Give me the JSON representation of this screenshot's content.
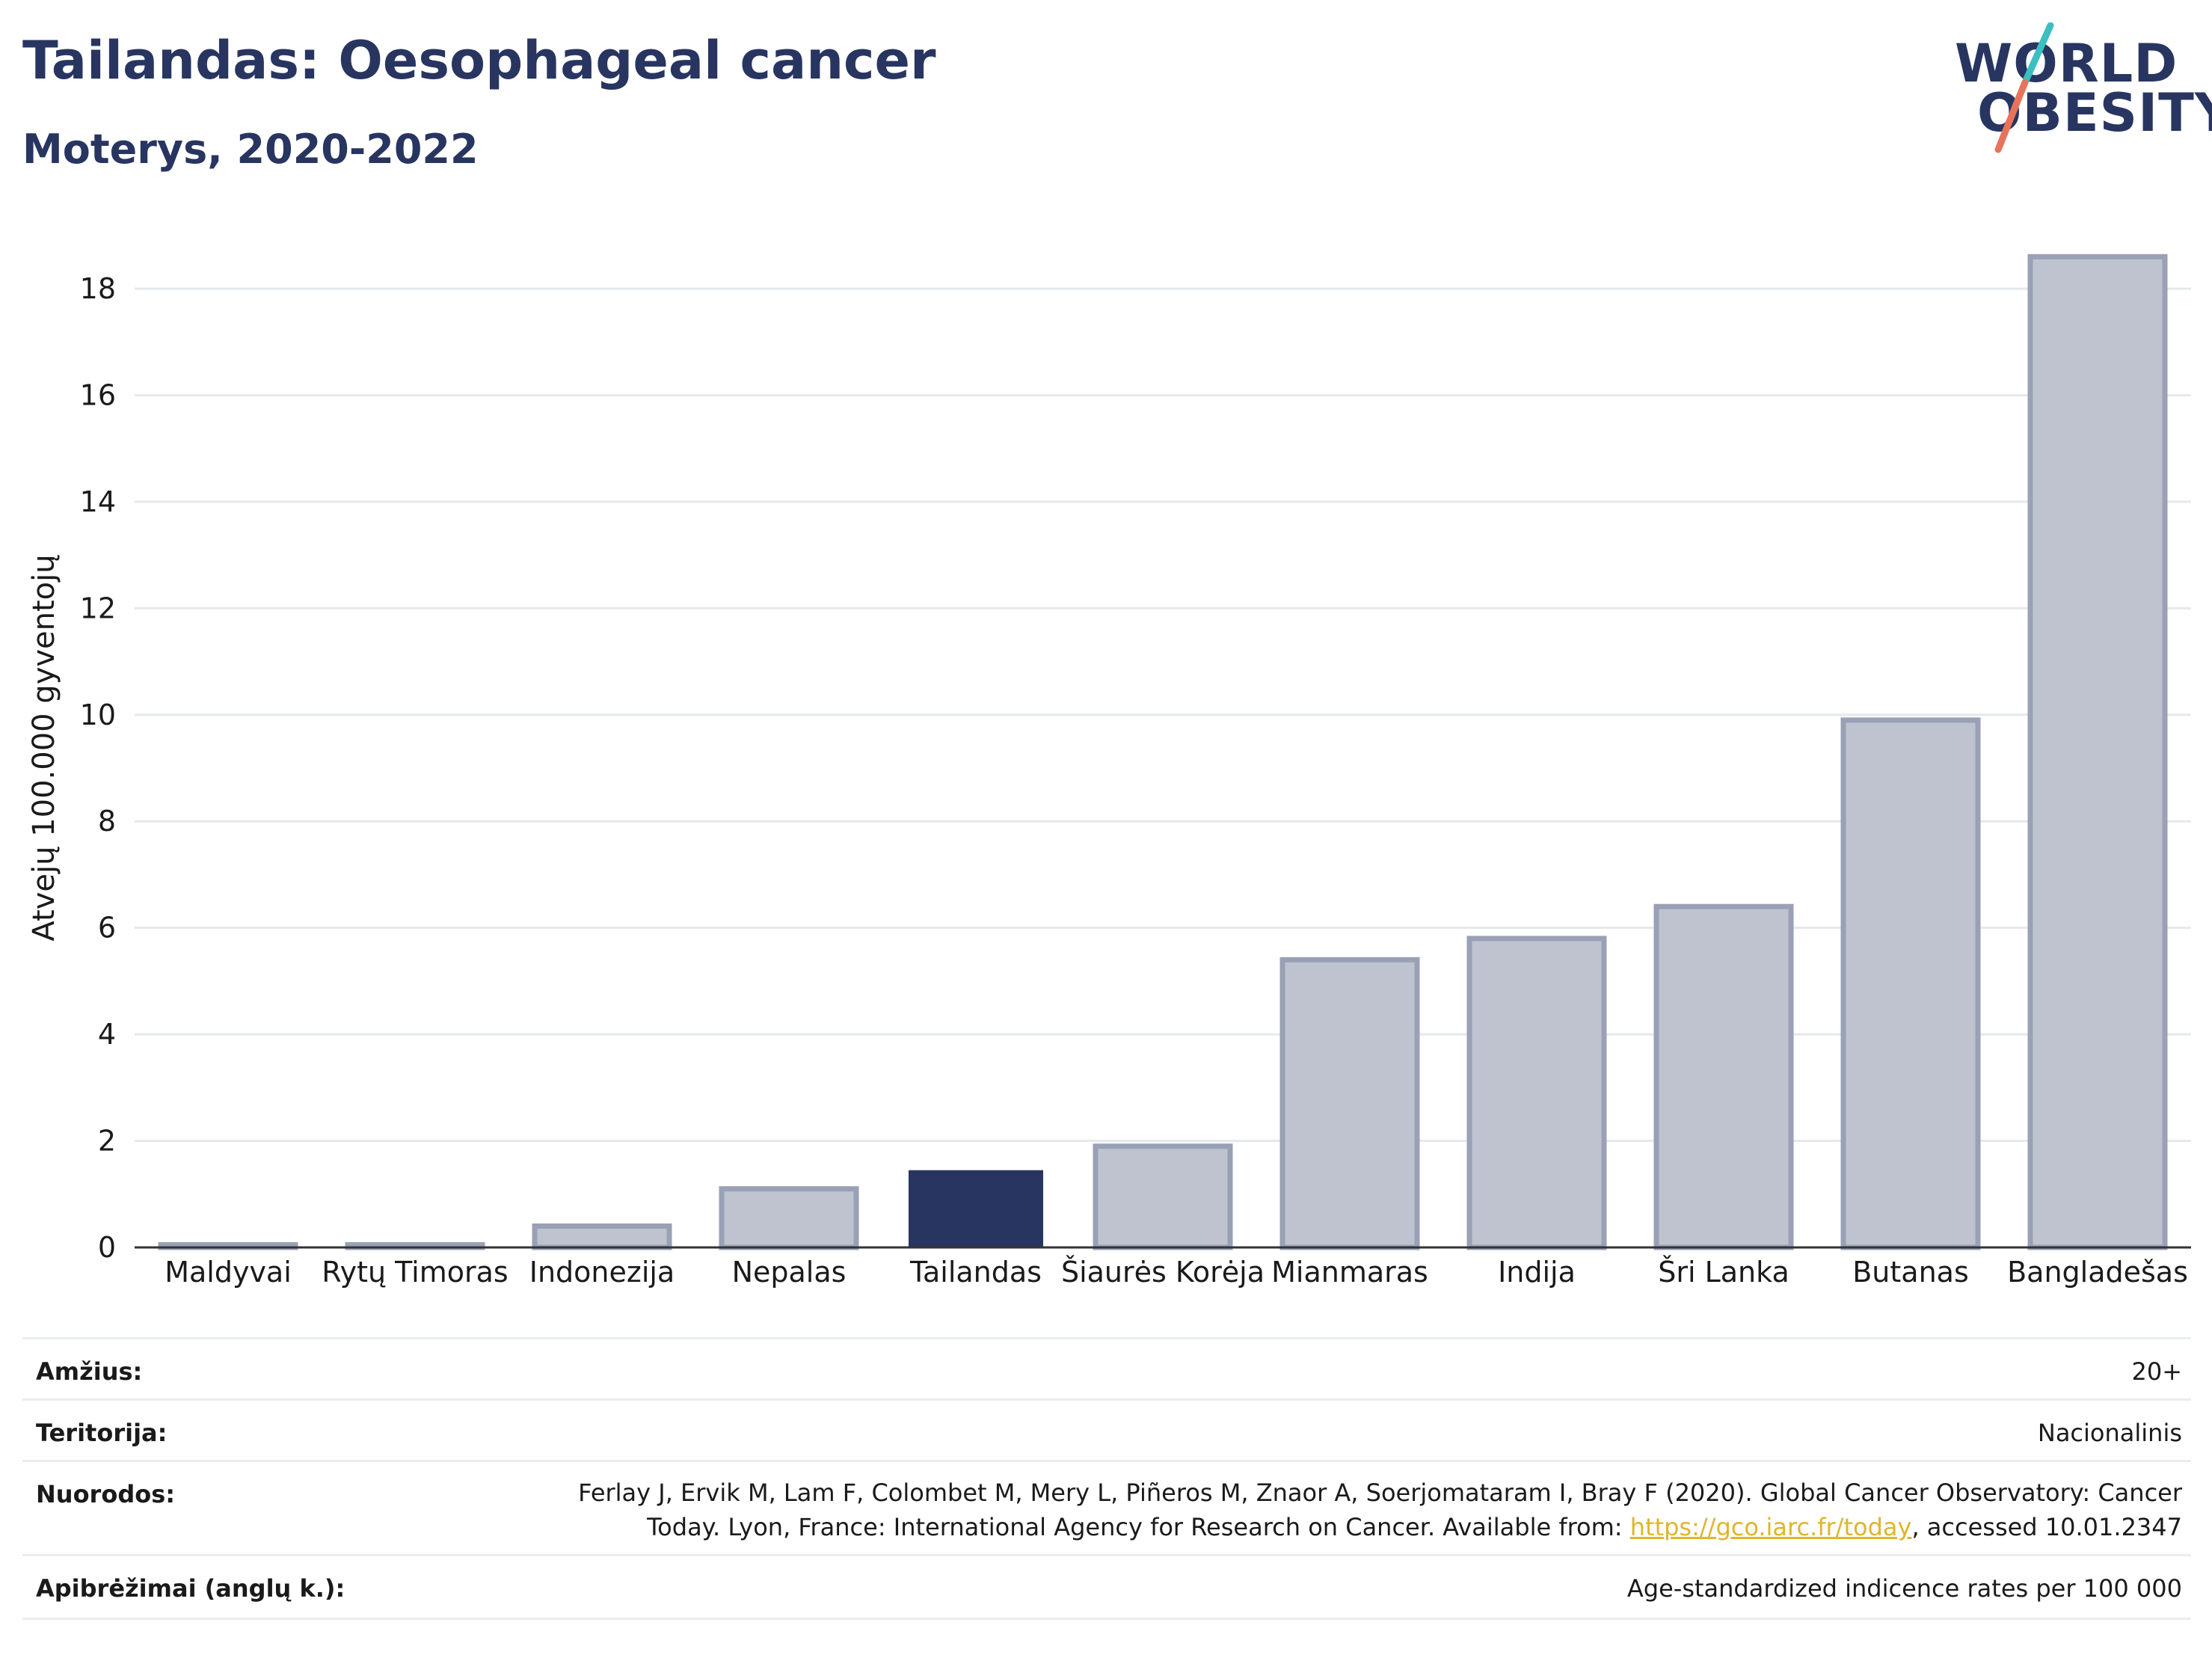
{
  "header": {
    "title": "Tailandas: Oesophageal cancer",
    "subtitle": "Moterys, 2020-2022"
  },
  "logo": {
    "line1": "WORLD",
    "line2": "OBESITY",
    "brand_color": "#283561",
    "slash_color_top": "#3bbfc0",
    "slash_color_bottom": "#e8735a"
  },
  "colors": {
    "bar_default": "#bfc3d0",
    "bar_edge": "#9aa0b5",
    "bar_highlight": "#283561",
    "grid": "#e5e8ee",
    "axis": "#333333"
  },
  "chart_data": {
    "type": "bar",
    "title": "Tailandas: Oesophageal cancer",
    "subtitle": "Moterys, 2020-2022",
    "ylabel": "Atvejų 100.000 gyventojų",
    "xlabel": "",
    "ylim": [
      0,
      19
    ],
    "yticks": [
      0,
      2,
      4,
      6,
      8,
      10,
      12,
      14,
      16,
      18
    ],
    "grid": true,
    "highlight": "Tailandas",
    "categories": [
      "Maldyvai",
      "Rytų Timoras",
      "Indonezija",
      "Nepalas",
      "Tailandas",
      "Šiaurės Korėja",
      "Mianmaras",
      "Indija",
      "Šri Lanka",
      "Butanas",
      "Bangladešas"
    ],
    "values": [
      0.05,
      0.05,
      0.4,
      1.1,
      1.45,
      1.9,
      5.4,
      5.8,
      6.4,
      9.9,
      18.6
    ]
  },
  "info": {
    "age_label": "Amžius:",
    "age_value": "20+",
    "territory_label": "Teritorija:",
    "territory_value": "Nacionalinis",
    "refs_label": "Nuorodos:",
    "refs_line1": "Ferlay J, Ervik M, Lam F, Colombet M, Mery L, Piñeros M, Znaor A, Soerjomataram I, Bray F (2020). Global Cancer Observatory: Cancer",
    "refs_line2_pre": "Today. Lyon, France: International Agency for Research on Cancer. Available from: ",
    "refs_link": "https://gco.iarc.fr/today",
    "refs_line2_post": ", accessed 10.01.2347",
    "defs_label": "Apibrėžimai (anglų k.):",
    "defs_value": "Age-standardized indicence rates per 100 000"
  }
}
